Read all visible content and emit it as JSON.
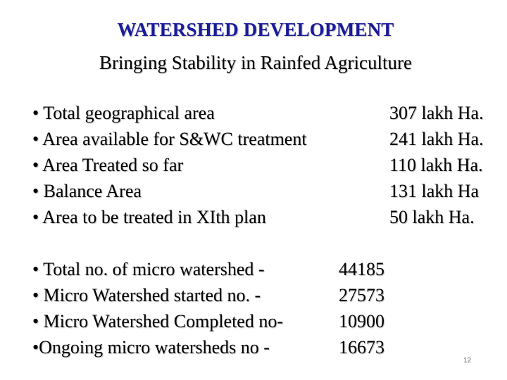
{
  "title": "WATERSHED DEVELOPMENT",
  "subtitle": "Bringing Stability in Rainfed Agriculture",
  "area_stats": [
    {
      "label": "• Total geographical area",
      "value": "307 lakh Ha."
    },
    {
      "label": "• Area available for S&WC treatment",
      "value": "241 lakh Ha."
    },
    {
      "label": "• Area Treated so far",
      "value": "110 lakh Ha."
    },
    {
      "label": "• Balance Area",
      "value": "131 lakh Ha"
    },
    {
      "label": "• Area to be treated in XIth plan",
      "value": "50 lakh Ha."
    }
  ],
  "watershed_stats": [
    {
      "label": "• Total no. of micro watershed   -",
      "value": "44185"
    },
    {
      "label": "• Micro Watershed started no.    -",
      "value": "27573"
    },
    {
      "label": "• Micro Watershed Completed no-",
      "value": "10900"
    },
    {
      "label": "•Ongoing micro watersheds no  -",
      "value": "16673"
    }
  ],
  "page_number": "12"
}
